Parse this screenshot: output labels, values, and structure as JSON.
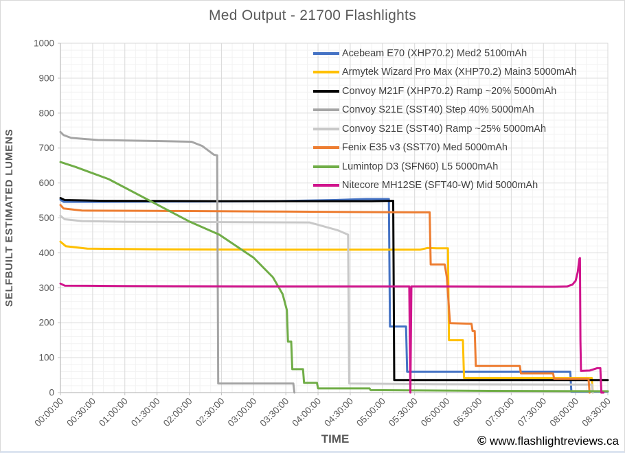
{
  "title": "Med Output - 21700 Flashlights",
  "axes": {
    "y_title": "SELFBUILT ESTIMATED LUMENS",
    "x_title": "TIME"
  },
  "footer": {
    "copyright_symbol": "©",
    "copyright_text": " www.flashlightreviews.ca"
  },
  "chart_data": {
    "type": "line",
    "title": "Med Output - 21700 Flashlights",
    "xlabel": "TIME",
    "ylabel": "SELFBUILT ESTIMATED LUMENS",
    "x_unit": "minutes",
    "xlim": [
      0,
      510
    ],
    "ylim": [
      0,
      1000
    ],
    "y_tick_step": 100,
    "x_tick_step_minutes": 30,
    "grid": {
      "major": true,
      "minor": true
    },
    "legend_position": "top-right-inside",
    "x_tick_labels": [
      "00:00:00",
      "00:30:00",
      "01:00:00",
      "01:30:00",
      "02:00:00",
      "02:30:00",
      "03:00:00",
      "03:30:00",
      "04:00:00",
      "04:30:00",
      "05:00:00",
      "05:30:00",
      "06:00:00",
      "06:30:00",
      "07:00:00",
      "07:30:00",
      "08:00:00",
      "08:30:00"
    ],
    "y_tick_labels": [
      "0",
      "100",
      "200",
      "300",
      "400",
      "500",
      "600",
      "700",
      "800",
      "900",
      "1000"
    ],
    "series": [
      {
        "key": "acebeam-e70",
        "name": "Acebeam E70 (XHP70.2) Med2 5100mAh",
        "color": "#4472c4",
        "points": [
          [
            0,
            552
          ],
          [
            3,
            546
          ],
          [
            30,
            546
          ],
          [
            120,
            547
          ],
          [
            200,
            548
          ],
          [
            255,
            551
          ],
          [
            285,
            554
          ],
          [
            306,
            554
          ],
          [
            307,
            189
          ],
          [
            322,
            189
          ],
          [
            323,
            60
          ],
          [
            475,
            60
          ],
          [
            476,
            3
          ],
          [
            510,
            3
          ]
        ]
      },
      {
        "key": "armytek-wizard-pro-max",
        "name": "Armytek Wizard Pro Max (XHP70.2) Main3 5000mAh",
        "color": "#ffc000",
        "points": [
          [
            0,
            432
          ],
          [
            5,
            419
          ],
          [
            25,
            412
          ],
          [
            90,
            410
          ],
          [
            210,
            409
          ],
          [
            335,
            409
          ],
          [
            342,
            414
          ],
          [
            352,
            413
          ],
          [
            361,
            413
          ],
          [
            362,
            150
          ],
          [
            375,
            150
          ],
          [
            376,
            42
          ],
          [
            495,
            42
          ],
          [
            496,
            0
          ]
        ]
      },
      {
        "key": "convoy-m21f",
        "name": "Convoy M21F (XHP70.2) Ramp ~20% 5000mAh",
        "color": "#000000",
        "points": [
          [
            0,
            557
          ],
          [
            4,
            551
          ],
          [
            40,
            549
          ],
          [
            150,
            548
          ],
          [
            290,
            548
          ],
          [
            310,
            549
          ],
          [
            311,
            36
          ],
          [
            510,
            36
          ]
        ]
      },
      {
        "key": "convoy-s21e-step",
        "name": "Convoy S21E (SST40) Step 40% 5000mAh",
        "color": "#a5a5a5",
        "points": [
          [
            0,
            746
          ],
          [
            3,
            737
          ],
          [
            10,
            729
          ],
          [
            35,
            723
          ],
          [
            90,
            720
          ],
          [
            122,
            718
          ],
          [
            132,
            706
          ],
          [
            143,
            681
          ],
          [
            146,
            679
          ],
          [
            147,
            26
          ],
          [
            217,
            26
          ],
          [
            218,
            0
          ]
        ]
      },
      {
        "key": "convoy-s21e-ramp",
        "name": "Convoy S21E (SST40) Ramp ~25% 5000mAh",
        "color": "#c9c9c9",
        "points": [
          [
            0,
            506
          ],
          [
            4,
            496
          ],
          [
            20,
            491
          ],
          [
            60,
            489
          ],
          [
            150,
            488
          ],
          [
            232,
            487
          ],
          [
            258,
            465
          ],
          [
            268,
            452
          ],
          [
            269,
            26
          ],
          [
            350,
            24
          ],
          [
            470,
            23
          ],
          [
            495,
            23
          ],
          [
            496,
            0
          ]
        ]
      },
      {
        "key": "fenix-e35-v3",
        "name": "Fenix E35 v3 (SST70) Med 5000mAh",
        "color": "#ed7d31",
        "points": [
          [
            0,
            537
          ],
          [
            3,
            527
          ],
          [
            20,
            521
          ],
          [
            90,
            520
          ],
          [
            210,
            518
          ],
          [
            330,
            516
          ],
          [
            344,
            516
          ],
          [
            345,
            367
          ],
          [
            358,
            367
          ],
          [
            360,
            330
          ],
          [
            362,
            240
          ],
          [
            363,
            199
          ],
          [
            383,
            197
          ],
          [
            384,
            176
          ],
          [
            386,
            176
          ],
          [
            387,
            76
          ],
          [
            428,
            76
          ],
          [
            429,
            55
          ],
          [
            459,
            55
          ],
          [
            460,
            39
          ],
          [
            492,
            39
          ],
          [
            493,
            0
          ]
        ]
      },
      {
        "key": "lumintop-d3",
        "name": "Lumintop D3 (SFN60) L5 5000mAh",
        "color": "#70ad47",
        "points": [
          [
            0,
            660
          ],
          [
            14,
            646
          ],
          [
            45,
            611
          ],
          [
            120,
            490
          ],
          [
            148,
            452
          ],
          [
            180,
            386
          ],
          [
            198,
            330
          ],
          [
            207,
            282
          ],
          [
            211,
            236
          ],
          [
            212,
            146
          ],
          [
            215,
            146
          ],
          [
            216,
            67
          ],
          [
            226,
            67
          ],
          [
            227,
            28
          ],
          [
            239,
            28
          ],
          [
            240,
            12
          ],
          [
            288,
            12
          ],
          [
            289,
            7
          ],
          [
            400,
            5
          ],
          [
            510,
            4
          ]
        ]
      },
      {
        "key": "nitecore-mh12se",
        "name": "Nitecore MH12SE (SFT40-W) Mid 5000mAh",
        "color": "#d0148c",
        "points": [
          [
            0,
            312
          ],
          [
            4,
            306
          ],
          [
            60,
            305
          ],
          [
            180,
            304
          ],
          [
            300,
            304
          ],
          [
            325,
            304
          ],
          [
            326,
            0
          ],
          [
            327,
            304
          ],
          [
            350,
            304
          ],
          [
            460,
            303
          ],
          [
            472,
            304
          ],
          [
            477,
            309
          ],
          [
            480,
            320
          ],
          [
            482,
            345
          ],
          [
            483.5,
            383
          ],
          [
            484,
            385
          ],
          [
            484.5,
            150
          ],
          [
            485,
            62
          ],
          [
            493,
            63
          ],
          [
            500,
            70
          ],
          [
            503,
            70
          ],
          [
            504,
            0
          ],
          [
            506,
            0
          ]
        ]
      }
    ]
  }
}
